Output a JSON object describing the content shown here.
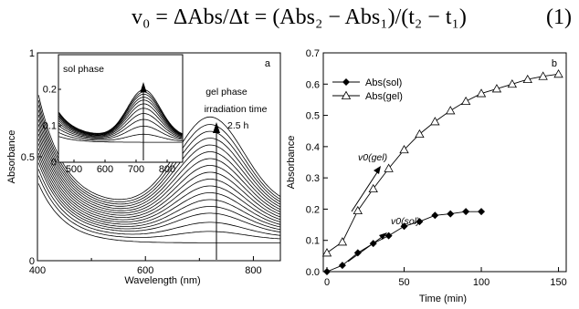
{
  "equation": {
    "lhs": "v",
    "lhs_sub": "0",
    "rhs": " = ΔAbs/Δt = (Abs",
    "parts": [
      "v₀ = ΔAbs/Δt = (Abs₂ − Abs₁)/(t₂ − t₁)"
    ],
    "number": "(1)"
  },
  "chart_data": [
    {
      "type": "line",
      "panel_label": "a",
      "xlabel": "Wavelength (nm)",
      "ylabel": "Absorbance",
      "xlim": [
        400,
        850
      ],
      "ylim": [
        0,
        1
      ],
      "xticks": [
        400,
        600,
        800
      ],
      "yticks": [
        0,
        0.5,
        1
      ],
      "annotations": [
        "gel phase",
        "irradiation time",
        "2.5 h"
      ],
      "grid": false,
      "series_peak_values": [
        0.633,
        0.6,
        0.57,
        0.54,
        0.51,
        0.48,
        0.45,
        0.42,
        0.39,
        0.36,
        0.33,
        0.3,
        0.27,
        0.24,
        0.21,
        0.17,
        0.13,
        0.08
      ],
      "inset": {
        "title": "sol phase",
        "xlim": [
          450,
          850
        ],
        "ylim": [
          0,
          0.25
        ],
        "xticks": [
          500,
          600,
          700,
          800
        ],
        "yticks": [
          0,
          0.1,
          0.2
        ],
        "series_peak_values": [
          0.188,
          0.182,
          0.176,
          0.168,
          0.16,
          0.15,
          0.138,
          0.124,
          0.108,
          0.09,
          0.068,
          0.045
        ]
      }
    },
    {
      "type": "line",
      "panel_label": "b",
      "xlabel": "Time (min)",
      "ylabel": "Absorbance",
      "xlim": [
        0,
        155
      ],
      "ylim": [
        0,
        0.7
      ],
      "xticks": [
        0,
        50,
        100,
        150
      ],
      "yticks": [
        0.0,
        0.1,
        0.2,
        0.3,
        0.4,
        0.5,
        0.6,
        0.7
      ],
      "legend": "top-left",
      "grid": false,
      "series": [
        {
          "name": "Abs(sol)",
          "marker": "filled-diamond",
          "x": [
            0,
            10,
            20,
            30,
            40,
            50,
            60,
            70,
            80,
            90,
            100
          ],
          "y": [
            0.0,
            0.02,
            0.06,
            0.09,
            0.115,
            0.145,
            0.16,
            0.18,
            0.185,
            0.192,
            0.192
          ]
        },
        {
          "name": "Abs(gel)",
          "marker": "open-triangle",
          "x": [
            0,
            10,
            20,
            30,
            40,
            50,
            60,
            70,
            80,
            90,
            100,
            110,
            120,
            130,
            140,
            150
          ],
          "y": [
            0.06,
            0.095,
            0.195,
            0.265,
            0.33,
            0.39,
            0.44,
            0.48,
            0.515,
            0.545,
            0.57,
            0.585,
            0.6,
            0.615,
            0.625,
            0.632
          ]
        }
      ],
      "annotations": [
        "v0(gel)",
        "v0(sol)"
      ]
    }
  ],
  "icons": {
    "arrow_color": "#000000"
  }
}
